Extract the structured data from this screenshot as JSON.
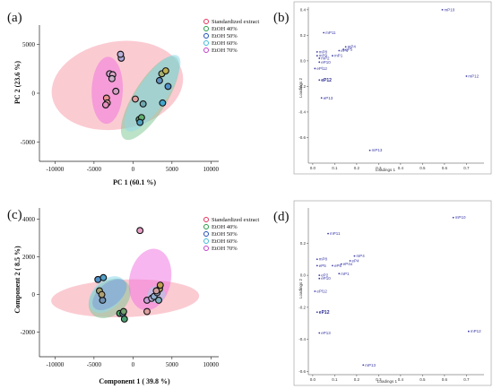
{
  "panels": [
    {
      "label": "(a)",
      "type": "scatter",
      "xlabel": "PC 1 (60.1 %)",
      "ylabel": "PC 2 (23.6 %)",
      "xlim": [
        -12000,
        11000
      ],
      "ylim": [
        -7000,
        7000
      ],
      "xticks": [
        -10000,
        -5000,
        0,
        5000,
        10000
      ],
      "yticks": [
        5000,
        0,
        -5000
      ],
      "legend": [
        {
          "name": "Standardized extract",
          "color": "#e8305a"
        },
        {
          "name": "EtOH 40%",
          "color": "#2a9a4a"
        },
        {
          "name": "EtOH 50%",
          "color": "#2050b0"
        },
        {
          "name": "EtOH 60%",
          "color": "#40b8d8"
        },
        {
          "name": "EtOH 70%",
          "color": "#c040c8"
        }
      ],
      "ellipses": [
        {
          "cx": -2000,
          "cy": 800,
          "rx": 8500,
          "ry": 4500,
          "rot": -10,
          "color": "#f7a1ad",
          "opacity": 0.55
        },
        {
          "cx": 2200,
          "cy": -500,
          "rx": 6200,
          "ry": 1700,
          "rot": -58,
          "color": "#79c590",
          "opacity": 0.5
        },
        {
          "cx": 2500,
          "cy": 0,
          "rx": 5800,
          "ry": 1500,
          "rot": -56,
          "color": "#8fd8ea",
          "opacity": 0.55
        },
        {
          "cx": -3300,
          "cy": 300,
          "rx": 4300,
          "ry": 1600,
          "rot": -88,
          "color": "#ef6ee0",
          "opacity": 0.5
        }
      ],
      "points": [
        {
          "x": -3400,
          "y": -500,
          "fill": "#e89090"
        },
        {
          "x": -3300,
          "y": -1000,
          "fill": "#e8a0a0"
        },
        {
          "x": -3500,
          "y": -1200,
          "fill": "#e890c0"
        },
        {
          "x": -3000,
          "y": 2000,
          "fill": "#c8a0c8"
        },
        {
          "x": -2600,
          "y": 1900,
          "fill": "#d8a8c8"
        },
        {
          "x": -2700,
          "y": 1500,
          "fill": "#c8b0c8"
        },
        {
          "x": -1500,
          "y": 3600,
          "fill": "#b0a8d8"
        },
        {
          "x": -1600,
          "y": 4000,
          "fill": "#b8b0d8"
        },
        {
          "x": -2200,
          "y": 200,
          "fill": "#d0a0c0"
        },
        {
          "x": 300,
          "y": -600,
          "fill": "#e0a0a0"
        },
        {
          "x": 800,
          "y": -2700,
          "fill": "#50a868"
        },
        {
          "x": 1100,
          "y": -2500,
          "fill": "#60b070"
        },
        {
          "x": 1300,
          "y": -1100,
          "fill": "#70a8b0"
        },
        {
          "x": 900,
          "y": -3000,
          "fill": "#50a0c0"
        },
        {
          "x": 3400,
          "y": 1300,
          "fill": "#6090c0"
        },
        {
          "x": 3700,
          "y": 2000,
          "fill": "#a8b070"
        },
        {
          "x": 4200,
          "y": 2300,
          "fill": "#c0b050"
        },
        {
          "x": 3800,
          "y": -1000,
          "fill": "#40a8d0"
        },
        {
          "x": 4500,
          "y": 700,
          "fill": "#5090c8"
        }
      ]
    },
    {
      "label": "(b)",
      "type": "scatter",
      "xlabel": "Loadings 1",
      "ylabel": "Loadings 2",
      "xlim": [
        -0.02,
        0.78
      ],
      "ylim": [
        -0.8,
        0.42
      ],
      "xticks": [
        0.0,
        0.1,
        0.2,
        0.3,
        0.4,
        0.5,
        0.6,
        0.7
      ],
      "xtick_labels": [
        "0.0",
        "0.1",
        "0.2",
        "0.3",
        "0.4",
        "0.5",
        "0.6",
        "0.7"
      ],
      "yticks": [
        0.4,
        0.2,
        0.0,
        -0.2,
        -0.4,
        -0.6
      ],
      "ytick_labels": [
        "0.4",
        "0.2",
        "0.0",
        "-0.2",
        "-0.4",
        "-0.6"
      ],
      "points": [
        {
          "x": 0.59,
          "y": 0.4,
          "label": "mP10",
          "bold": false
        },
        {
          "x": 0.05,
          "y": 0.22,
          "label": "mP11",
          "bold": false
        },
        {
          "x": 0.15,
          "y": 0.11,
          "label": "mP4",
          "bold": false
        },
        {
          "x": 0.02,
          "y": 0.07,
          "label": "mP8",
          "bold": false
        },
        {
          "x": 0.12,
          "y": 0.08,
          "label": "eP4",
          "bold": false
        },
        {
          "x": 0.14,
          "y": 0.09,
          "label": "eP5",
          "bold": false
        },
        {
          "x": 0.09,
          "y": 0.04,
          "label": "mP1",
          "bold": false
        },
        {
          "x": 0.02,
          "y": 0.04,
          "label": "mP9",
          "bold": false
        },
        {
          "x": 0.03,
          "y": 0.02,
          "label": "mP2",
          "bold": false
        },
        {
          "x": 0.03,
          "y": -0.01,
          "label": "eP10",
          "bold": false
        },
        {
          "x": 0.01,
          "y": -0.06,
          "label": "ePl12",
          "bold": false
        },
        {
          "x": 0.03,
          "y": -0.15,
          "label": "eP12",
          "bold": true
        },
        {
          "x": 0.04,
          "y": -0.29,
          "label": "eP13",
          "bold": false
        },
        {
          "x": 0.7,
          "y": -0.12,
          "label": "mP12",
          "bold": false
        },
        {
          "x": 0.26,
          "y": -0.7,
          "label": "mP13",
          "bold": false
        }
      ]
    },
    {
      "label": "(c)",
      "type": "scatter",
      "xlabel": "Component 1 ( 39.8 %)",
      "ylabel": "Component 2 ( 8.5 %)",
      "xlim": [
        -12000,
        11000
      ],
      "ylim": [
        -3300,
        4600
      ],
      "xticks": [
        -10000,
        -5000,
        0,
        5000,
        10000
      ],
      "yticks": [
        4000,
        2000,
        0,
        -2000
      ],
      "legend": [
        {
          "name": "Standardized extract",
          "color": "#e8305a"
        },
        {
          "name": "EtOH 40%",
          "color": "#2a9a4a"
        },
        {
          "name": "EtOH 50%",
          "color": "#2050b0"
        },
        {
          "name": "EtOH 60%",
          "color": "#40b8d8"
        },
        {
          "name": "EtOH 70%",
          "color": "#c040c8"
        }
      ],
      "ellipses": [
        {
          "cx": -1000,
          "cy": -200,
          "rx": 9500,
          "ry": 1000,
          "rot": -2,
          "color": "#f7a1ad",
          "opacity": 0.55
        },
        {
          "cx": -3000,
          "cy": -200,
          "rx": 3000,
          "ry": 900,
          "rot": -40,
          "color": "#79c590",
          "opacity": 0.5
        },
        {
          "cx": -3300,
          "cy": 0,
          "rx": 2800,
          "ry": 750,
          "rot": -45,
          "color": "#8fd8ea",
          "opacity": 0.55
        },
        {
          "cx": -3000,
          "cy": 0,
          "rx": 2600,
          "ry": 600,
          "rot": -40,
          "color": "#7890d8",
          "opacity": 0.45
        },
        {
          "cx": 2200,
          "cy": 800,
          "rx": 4000,
          "ry": 1100,
          "rot": -78,
          "color": "#ef6ee0",
          "opacity": 0.5
        },
        {
          "cx": 3000,
          "cy": 0,
          "rx": 1100,
          "ry": 450,
          "rot": -15,
          "color": "#9ad8ea",
          "opacity": 0.5
        }
      ],
      "points": [
        {
          "x": -4500,
          "y": 800,
          "fill": "#5090c8"
        },
        {
          "x": -3800,
          "y": 900,
          "fill": "#50a0c8"
        },
        {
          "x": -4300,
          "y": 200,
          "fill": "#a0a070"
        },
        {
          "x": -3900,
          "y": -300,
          "fill": "#7090b0"
        },
        {
          "x": -4000,
          "y": 0,
          "fill": "#b0a070"
        },
        {
          "x": -1700,
          "y": -1000,
          "fill": "#50a868"
        },
        {
          "x": -1300,
          "y": -1000,
          "fill": "#6090b8"
        },
        {
          "x": -1100,
          "y": -1300,
          "fill": "#4aa070"
        },
        {
          "x": -1200,
          "y": -900,
          "fill": "#70a070"
        },
        {
          "x": 900,
          "y": 3400,
          "fill": "#e8a0c8"
        },
        {
          "x": 1800,
          "y": -300,
          "fill": "#c8a0d8"
        },
        {
          "x": 2400,
          "y": -200,
          "fill": "#b0b0d8"
        },
        {
          "x": 2700,
          "y": -100,
          "fill": "#90b0d0"
        },
        {
          "x": 3100,
          "y": 100,
          "fill": "#a0a8c0"
        },
        {
          "x": 3400,
          "y": 300,
          "fill": "#b0a060"
        },
        {
          "x": 3500,
          "y": 500,
          "fill": "#c0a050"
        },
        {
          "x": 3300,
          "y": -300,
          "fill": "#80b0c0"
        },
        {
          "x": 1800,
          "y": -900,
          "fill": "#e0a0a0"
        },
        {
          "x": 3000,
          "y": 200,
          "fill": "#d0a0a0"
        }
      ]
    },
    {
      "label": "(d)",
      "type": "scatter",
      "xlabel": "Loadings 1",
      "ylabel": "Loadings 2",
      "xlim": [
        -0.02,
        0.78
      ],
      "ylim": [
        -0.62,
        0.42
      ],
      "xticks": [
        0.0,
        0.1,
        0.2,
        0.3,
        0.4,
        0.5,
        0.6,
        0.7
      ],
      "xtick_labels": [
        "0.0",
        "0.1",
        "0.2",
        "0.3",
        "0.4",
        "0.5",
        "0.6",
        "0.7"
      ],
      "yticks": [
        0.2,
        0.0,
        -0.2,
        -0.4,
        -0.6
      ],
      "ytick_labels": [
        "0.2",
        "0.0",
        "-0.2",
        "-0.4",
        "-0.6"
      ],
      "points": [
        {
          "x": 0.64,
          "y": 0.36,
          "label": "mP10",
          "bold": false
        },
        {
          "x": 0.07,
          "y": 0.26,
          "label": "mP11",
          "bold": false
        },
        {
          "x": 0.19,
          "y": 0.12,
          "label": "mP4",
          "bold": false
        },
        {
          "x": 0.02,
          "y": 0.1,
          "label": "mP8",
          "bold": false
        },
        {
          "x": 0.17,
          "y": 0.09,
          "label": "eP4",
          "bold": false
        },
        {
          "x": 0.13,
          "y": 0.07,
          "label": "eP4o",
          "bold": false
        },
        {
          "x": 0.09,
          "y": 0.06,
          "label": "eP5",
          "bold": false
        },
        {
          "x": 0.02,
          "y": 0.06,
          "label": "eP5",
          "bold": false
        },
        {
          "x": 0.12,
          "y": 0.01,
          "label": "mP1",
          "bold": false
        },
        {
          "x": 0.03,
          "y": 0.0,
          "label": "eP2",
          "bold": false
        },
        {
          "x": 0.03,
          "y": -0.02,
          "label": "eP10",
          "bold": false
        },
        {
          "x": 0.01,
          "y": -0.1,
          "label": "ePl12",
          "bold": false
        },
        {
          "x": 0.02,
          "y": -0.23,
          "label": "eP12",
          "bold": true
        },
        {
          "x": 0.03,
          "y": -0.36,
          "label": "eP13",
          "bold": false
        },
        {
          "x": 0.71,
          "y": -0.35,
          "label": "mP12",
          "bold": false
        },
        {
          "x": 0.23,
          "y": -0.56,
          "label": "mP13",
          "bold": false
        }
      ]
    }
  ]
}
